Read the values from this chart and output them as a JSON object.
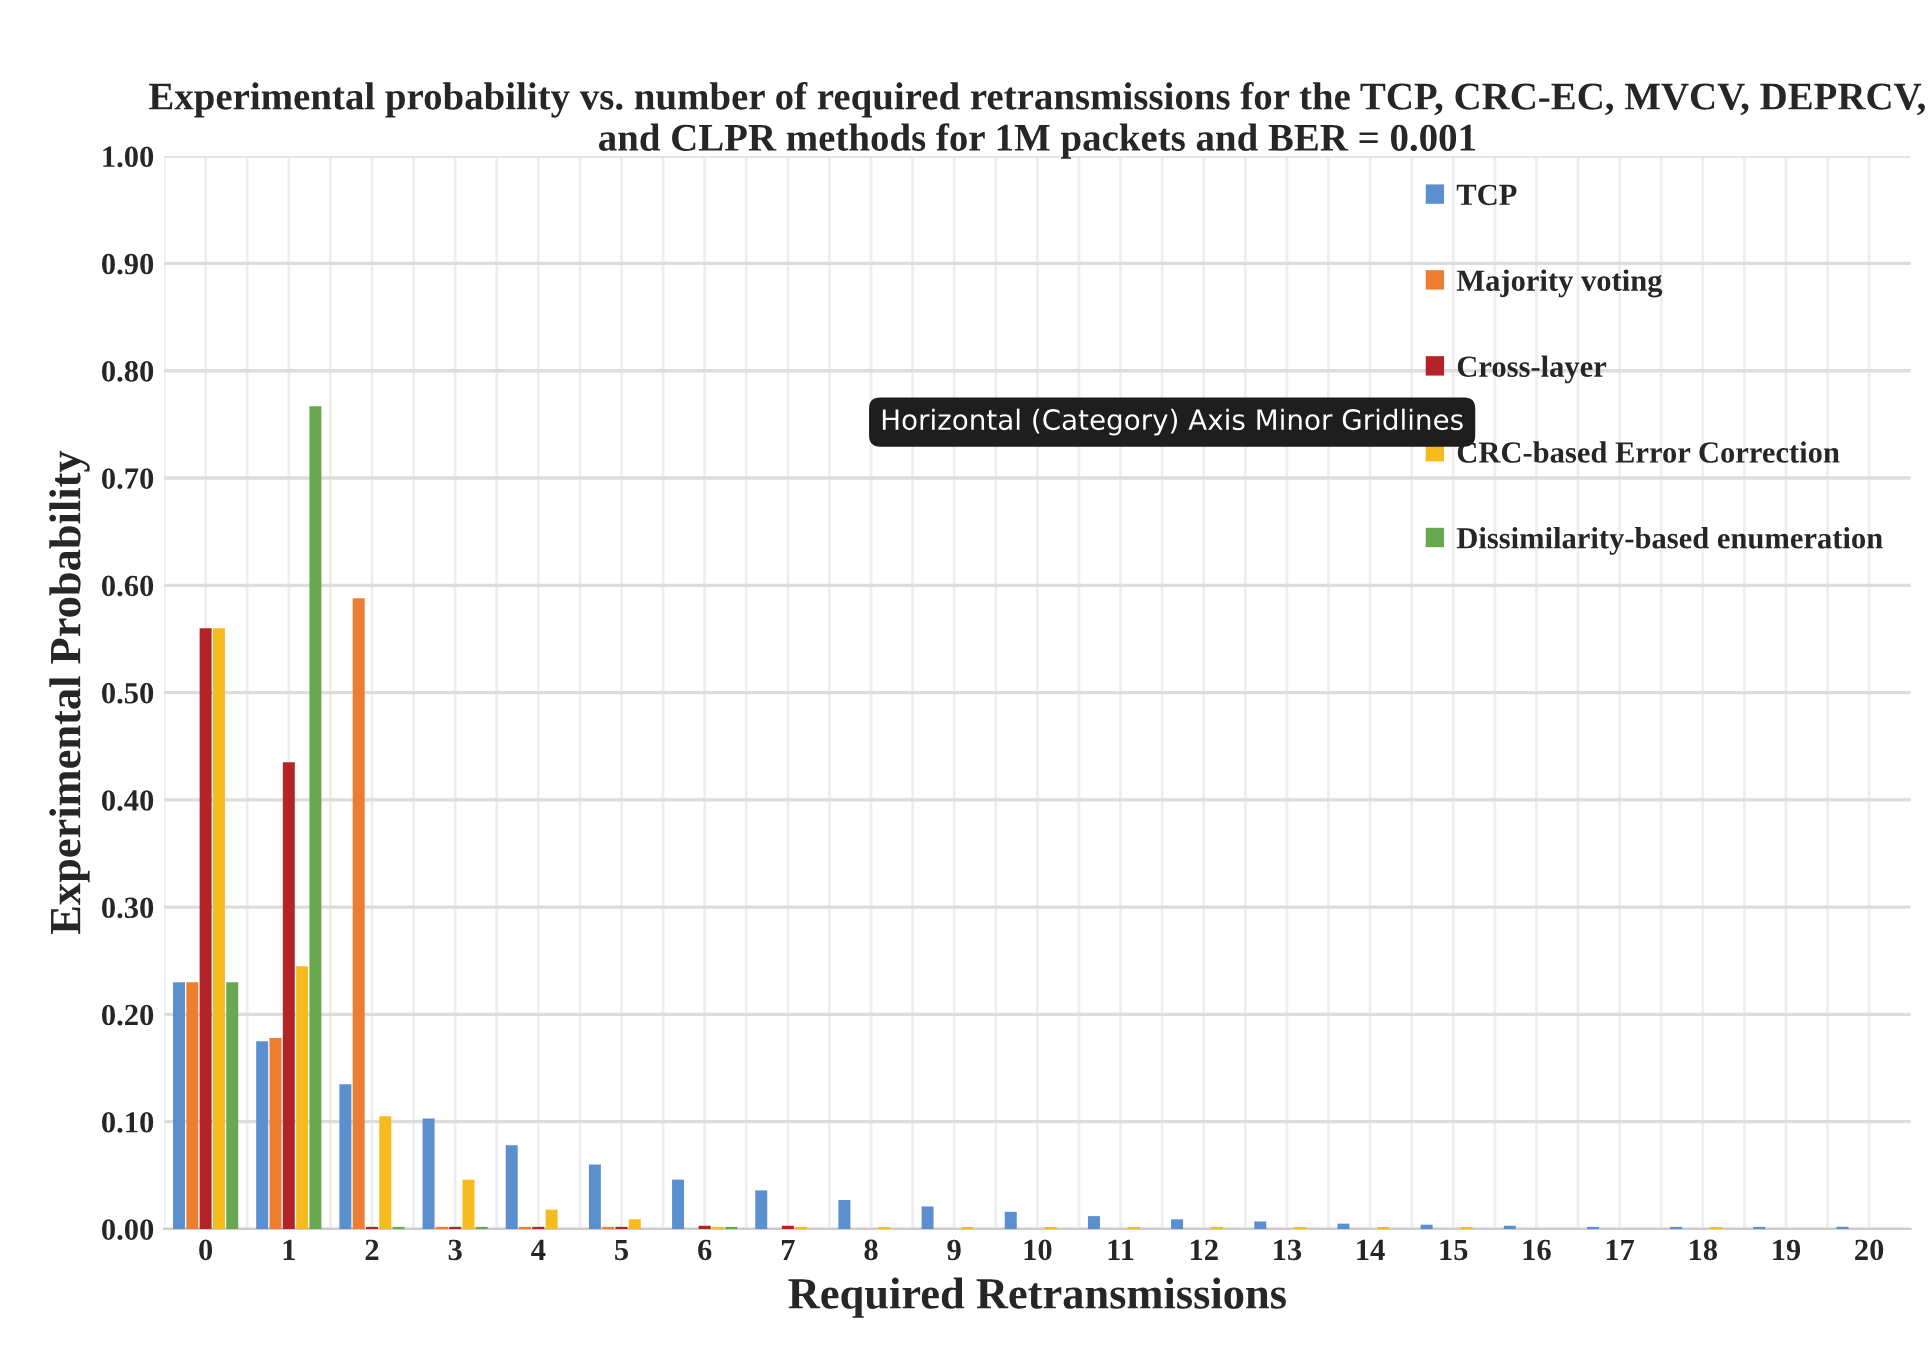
{
  "chart_data": {
    "type": "bar",
    "title": "Experimental probability vs. number of required retransmissions for the TCP, CRC-EC, MVCV, DEPRCV, and CLPR methods for 1M packets and BER = 0.001",
    "xlabel": "Required Retransmissions",
    "ylabel": "Experimental Probability",
    "categories": [
      "0",
      "1",
      "2",
      "3",
      "4",
      "5",
      "6",
      "7",
      "8",
      "9",
      "10",
      "11",
      "12",
      "13",
      "14",
      "15",
      "16",
      "17",
      "18",
      "19",
      "20"
    ],
    "series": [
      {
        "name": "TCP",
        "color": "#5b8fd0",
        "values": [
          0.23,
          0.175,
          0.135,
          0.103,
          0.078,
          0.06,
          0.046,
          0.036,
          0.027,
          0.021,
          0.016,
          0.012,
          0.009,
          0.007,
          0.005,
          0.004,
          0.003,
          0.002,
          0.002,
          0.002,
          0.002
        ]
      },
      {
        "name": "Majority voting",
        "color": "#ed7d31",
        "values": [
          0.23,
          0.178,
          0.588,
          0.002,
          0.002,
          0.002,
          null,
          null,
          null,
          null,
          null,
          null,
          null,
          null,
          null,
          null,
          null,
          null,
          null,
          null,
          null
        ]
      },
      {
        "name": "Cross-layer",
        "color": "#b22428",
        "values": [
          0.56,
          0.435,
          0.002,
          0.002,
          0.002,
          0.002,
          0.003,
          0.003,
          null,
          null,
          null,
          null,
          null,
          null,
          null,
          null,
          null,
          null,
          null,
          null,
          null
        ]
      },
      {
        "name": "CRC-based Error Correction",
        "color": "#f5bb1f",
        "values": [
          0.56,
          0.245,
          0.105,
          0.046,
          0.018,
          0.009,
          0.002,
          0.002,
          0.002,
          0.002,
          0.002,
          0.002,
          0.002,
          0.002,
          0.002,
          0.002,
          null,
          null,
          0.002,
          null,
          null
        ]
      },
      {
        "name": "Dissimilarity-based enumeration",
        "color": "#6aa84f",
        "values": [
          0.23,
          0.767,
          0.002,
          0.002,
          null,
          null,
          0.002,
          null,
          null,
          null,
          null,
          null,
          null,
          null,
          null,
          null,
          null,
          null,
          null,
          null,
          null
        ]
      }
    ],
    "ylim": [
      0,
      1.0
    ],
    "yticks": [
      {
        "value": 0,
        "label": "0.00"
      },
      {
        "value": 0.1,
        "label": "0.10"
      },
      {
        "value": 0.2,
        "label": "0.20"
      },
      {
        "value": 0.3,
        "label": "0.30"
      },
      {
        "value": 0.4,
        "label": "0.40"
      },
      {
        "value": 0.5,
        "label": "0.50"
      },
      {
        "value": 0.6,
        "label": "0.60"
      },
      {
        "value": 0.7,
        "label": "0.70"
      },
      {
        "value": 0.8,
        "label": "0.80"
      },
      {
        "value": 0.9,
        "label": "0.90"
      },
      {
        "value": 1.0,
        "label": "1.00"
      }
    ],
    "grid": true,
    "legend": "top right",
    "annotations": [
      "Horizontal (Category) Axis Minor Gridlines"
    ]
  }
}
